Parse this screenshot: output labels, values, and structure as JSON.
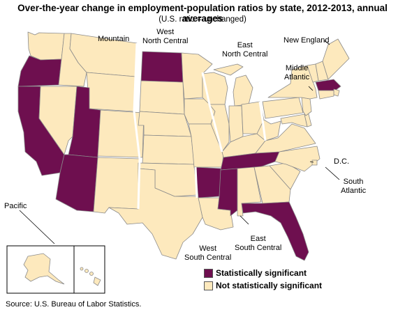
{
  "title": "Over-the-year change in employment-population ratios by state, 2012-2013, annual averages",
  "subtitle": "(U.S. ratio = unchanged)",
  "colors": {
    "significant": "#6e0f4f",
    "not_significant": "#fde9bd",
    "border": "#8a8a8a"
  },
  "regions": {
    "mountain": "Mountain",
    "west_north_central_1": "West",
    "west_north_central_2": "North Central",
    "east_north_central_1": "East",
    "east_north_central_2": "North Central",
    "new_england": "New England",
    "middle_atlantic_1": "Middle",
    "middle_atlantic_2": "Atlantic",
    "dc": "D.C.",
    "south_atlantic_1": "South",
    "south_atlantic_2": "Atlantic",
    "pacific": "Pacific",
    "east_south_central_1": "East",
    "east_south_central_2": "South Central",
    "west_south_central_1": "West",
    "west_south_central_2": "South Central"
  },
  "legend": {
    "significant": "Statistically significant",
    "not_significant": "Not statistically significant"
  },
  "significant_states": [
    "WA-no",
    "OR",
    "CA",
    "UT",
    "AZ",
    "ND",
    "AR",
    "TN",
    "MS",
    "FL",
    "MA"
  ],
  "source": "Source: U.S. Bureau of Labor Statistics."
}
